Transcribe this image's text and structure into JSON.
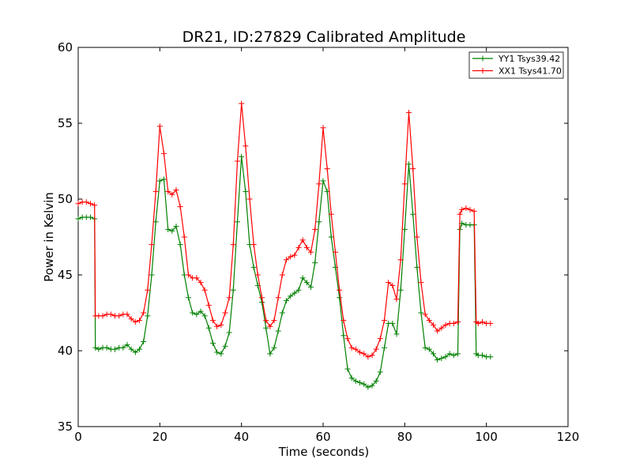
{
  "chart_data": {
    "type": "line",
    "title": "DR21, ID:27829 Calibrated Amplitude",
    "xlabel": "Time (seconds)",
    "ylabel": "Power in Kelvin",
    "xlim": [
      0,
      120
    ],
    "ylim": [
      35,
      60
    ],
    "xticks": [
      0,
      20,
      40,
      60,
      80,
      100,
      120
    ],
    "yticks": [
      35,
      40,
      45,
      50,
      55,
      60
    ],
    "grid": false,
    "legend_position": "top-right",
    "marker": "+",
    "series": [
      {
        "name": "YY1 Tsys39.42",
        "color": "#008000",
        "x": [
          0,
          1,
          2,
          3,
          4,
          4.2,
          5,
          6,
          7,
          8,
          9,
          10,
          11,
          12,
          13,
          14,
          15,
          16,
          17,
          18,
          19,
          20,
          21,
          22,
          23,
          24,
          25,
          26,
          27,
          28,
          29,
          30,
          31,
          32,
          33,
          34,
          35,
          36,
          37,
          38,
          39,
          40,
          41,
          42,
          43,
          44,
          45,
          46,
          47,
          48,
          49,
          50,
          51,
          52,
          53,
          54,
          55,
          56,
          57,
          58,
          59,
          60,
          61,
          62,
          63,
          64,
          65,
          66,
          67,
          68,
          69,
          70,
          71,
          72,
          73,
          74,
          75,
          76,
          77,
          78,
          79,
          80,
          81,
          82,
          83,
          84,
          85,
          86,
          87,
          88,
          89,
          90,
          91,
          92,
          93,
          93.5,
          94,
          95,
          96,
          97,
          97.5,
          98,
          99,
          100,
          101
        ],
        "y": [
          48.7,
          48.8,
          48.8,
          48.8,
          48.7,
          40.2,
          40.1,
          40.2,
          40.2,
          40.1,
          40.1,
          40.2,
          40.2,
          40.4,
          40.1,
          39.9,
          40.1,
          40.6,
          42.3,
          45,
          48.5,
          51.2,
          51.3,
          48,
          47.9,
          48.2,
          47,
          45,
          43.5,
          42.5,
          42.4,
          42.6,
          42.3,
          41.5,
          40.5,
          39.9,
          39.8,
          40.3,
          41.2,
          44,
          48.5,
          52.8,
          50.5,
          47,
          45.5,
          44.3,
          43.2,
          41.5,
          39.8,
          40.2,
          41.3,
          42.5,
          43.3,
          43.6,
          43.8,
          44,
          44.8,
          44.5,
          44.2,
          45.8,
          48.5,
          51.2,
          50.5,
          47.5,
          45.5,
          43.5,
          41,
          38.8,
          38.2,
          38,
          37.9,
          37.8,
          37.6,
          37.7,
          38,
          38.6,
          40.2,
          41.8,
          41.8,
          41.1,
          44,
          48,
          52.3,
          49,
          45.5,
          42.5,
          40.2,
          40.1,
          39.8,
          39.4,
          39.5,
          39.6,
          39.8,
          39.7,
          39.8,
          48,
          48.4,
          48.3,
          48.3,
          48.3,
          39.8,
          39.7,
          39.7,
          39.6,
          39.6
        ]
      },
      {
        "name": "XX1 Tsys41.70",
        "color": "#ff0000",
        "x": [
          0,
          1,
          2,
          3,
          4,
          4.2,
          5,
          6,
          7,
          8,
          9,
          10,
          11,
          12,
          13,
          14,
          15,
          16,
          17,
          18,
          19,
          20,
          21,
          22,
          23,
          24,
          25,
          26,
          27,
          28,
          29,
          30,
          31,
          32,
          33,
          34,
          35,
          36,
          37,
          38,
          39,
          40,
          41,
          42,
          43,
          44,
          45,
          46,
          47,
          48,
          49,
          50,
          51,
          52,
          53,
          54,
          55,
          56,
          57,
          58,
          59,
          60,
          61,
          62,
          63,
          64,
          65,
          66,
          67,
          68,
          69,
          70,
          71,
          72,
          73,
          74,
          75,
          76,
          77,
          78,
          79,
          80,
          81,
          82,
          83,
          84,
          85,
          86,
          87,
          88,
          89,
          90,
          91,
          92,
          93,
          93.5,
          94,
          95,
          96,
          97,
          97.5,
          98,
          99,
          100,
          101
        ],
        "y": [
          49.7,
          49.8,
          49.8,
          49.7,
          49.6,
          42.3,
          42.3,
          42.3,
          42.4,
          42.4,
          42.3,
          42.3,
          42.4,
          42.4,
          42.1,
          41.9,
          42,
          42.5,
          44,
          47,
          50.5,
          54.8,
          53,
          50.5,
          50.3,
          50.6,
          49.5,
          47.5,
          45,
          44.8,
          44.8,
          44.5,
          44,
          43,
          42,
          41.6,
          41.7,
          42.5,
          43.5,
          47,
          52.5,
          56.3,
          53.5,
          50,
          47,
          45,
          43.5,
          42,
          41.6,
          42,
          43.5,
          45,
          46,
          46.2,
          46.3,
          46.8,
          47.3,
          46.8,
          46.5,
          48,
          51,
          54.7,
          52,
          49,
          46.5,
          44,
          42,
          40.8,
          40.2,
          40.1,
          39.9,
          39.8,
          39.6,
          39.7,
          40.1,
          40.8,
          42,
          44.5,
          44.3,
          43.4,
          46,
          51,
          55.7,
          52,
          47.5,
          44.5,
          42.4,
          42,
          41.7,
          41.3,
          41.5,
          41.7,
          41.8,
          41.8,
          41.9,
          49,
          49.3,
          49.4,
          49.3,
          49.2,
          41.9,
          41.8,
          41.9,
          41.8,
          41.8
        ]
      }
    ]
  }
}
